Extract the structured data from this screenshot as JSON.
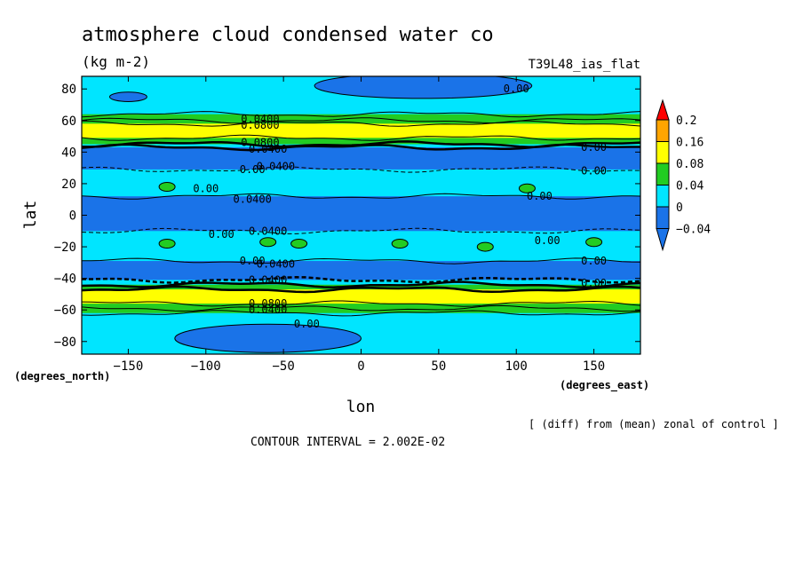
{
  "chart_data": {
    "type": "contour",
    "title": "atmosphere cloud condensed water co",
    "units": "(kg m-2)",
    "dataset": "T39L48_ias_flat",
    "xlabel": "lon",
    "ylabel": "lat",
    "x_units_label": "(degrees_east)",
    "y_units_label": "(degrees_north)",
    "xlim": [
      -180,
      180
    ],
    "ylim": [
      -90,
      90
    ],
    "x_ticks": [
      -150,
      -100,
      -50,
      0,
      50,
      100,
      150
    ],
    "y_ticks": [
      80,
      60,
      40,
      20,
      0,
      -20,
      -40,
      -60,
      -80
    ],
    "subtitle_note": "[ (diff) from (mean) zonal of control ]",
    "contour_interval_text": "CONTOUR INTERVAL = 2.002E-02",
    "colorbar": {
      "levels": [
        -0.04,
        0,
        0.04,
        0.08,
        0.16,
        0.2
      ],
      "labels": [
        "0.2",
        "0.16",
        "0.08",
        "0.04",
        "0",
        "-0.04"
      ],
      "colors": {
        "below": "#1a73e8",
        "-0.04_0": "#1a73e8",
        "0_0.04": "#00e5ff",
        "0.04_0.08": "#22cc22",
        "0.08_0.16": "#ffff00",
        "0.16_0.2": "#ffa500",
        "above": "#ff0000"
      }
    },
    "contour_labels": [
      {
        "text": "0.00",
        "lon": 100,
        "lat": 80
      },
      {
        "text": "0.0400",
        "lon": -65,
        "lat": 61
      },
      {
        "text": "0.0800",
        "lon": -65,
        "lat": 57
      },
      {
        "text": "0.0800",
        "lon": -65,
        "lat": 46
      },
      {
        "text": "0.0400",
        "lon": -60,
        "lat": 42
      },
      {
        "text": "0.00",
        "lon": 150,
        "lat": 43
      },
      {
        "text": "0.00",
        "lon": -70,
        "lat": 29
      },
      {
        "text": "0.0400",
        "lon": -55,
        "lat": 31
      },
      {
        "text": "0.00",
        "lon": 150,
        "lat": 28
      },
      {
        "text": "0.00",
        "lon": -100,
        "lat": 17
      },
      {
        "text": "0.0400",
        "lon": -70,
        "lat": 10
      },
      {
        "text": "0.00",
        "lon": 115,
        "lat": 12
      },
      {
        "text": "0.00",
        "lon": -90,
        "lat": -12
      },
      {
        "text": "0.0400",
        "lon": -60,
        "lat": -10
      },
      {
        "text": "0.00",
        "lon": 120,
        "lat": -16
      },
      {
        "text": "0.00",
        "lon": -70,
        "lat": -29
      },
      {
        "text": "0.0400",
        "lon": -55,
        "lat": -31
      },
      {
        "text": "0.00",
        "lon": 150,
        "lat": -29
      },
      {
        "text": "0.0400",
        "lon": -60,
        "lat": -41
      },
      {
        "text": "0.00",
        "lon": 150,
        "lat": -43
      },
      {
        "text": "0.0800",
        "lon": -60,
        "lat": -56
      },
      {
        "text": "0.0400",
        "lon": -60,
        "lat": -60
      },
      {
        "text": "0.00",
        "lon": -35,
        "lat": -69
      }
    ],
    "zonal_bands": [
      {
        "lat_from": 90,
        "lat_to": 64,
        "value": 0.01
      },
      {
        "lat_from": 64,
        "lat_to": 60,
        "value": 0.05
      },
      {
        "lat_from": 60,
        "lat_to": 58,
        "value": 0.06
      },
      {
        "lat_from": 58,
        "lat_to": 49,
        "value": 0.1
      },
      {
        "lat_from": 49,
        "lat_to": 45,
        "value": 0.06
      },
      {
        "lat_from": 45,
        "lat_to": 43,
        "value": 0.02
      },
      {
        "lat_from": 43,
        "lat_to": 29,
        "value": -0.02
      },
      {
        "lat_from": 29,
        "lat_to": 12,
        "value": 0.01
      },
      {
        "lat_from": 12,
        "lat_to": -10,
        "value": -0.02
      },
      {
        "lat_from": -10,
        "lat_to": -29,
        "value": 0.01
      },
      {
        "lat_from": -29,
        "lat_to": -41,
        "value": -0.02
      },
      {
        "lat_from": -41,
        "lat_to": -44,
        "value": 0.02
      },
      {
        "lat_from": -44,
        "lat_to": -47,
        "value": 0.06
      },
      {
        "lat_from": -47,
        "lat_to": -56,
        "value": 0.1
      },
      {
        "lat_from": -56,
        "lat_to": -59,
        "value": 0.06
      },
      {
        "lat_from": -59,
        "lat_to": -62,
        "value": 0.05
      },
      {
        "lat_from": -62,
        "lat_to": -90,
        "value": 0.01
      }
    ],
    "negative_patches": [
      {
        "lon_center": 40,
        "lat_center": 82,
        "lon_half": 70,
        "lat_half": 8
      },
      {
        "lon_center": -150,
        "lat_center": 75,
        "lon_half": 12,
        "lat_half": 3
      },
      {
        "lon_center": -60,
        "lat_center": -78,
        "lon_half": 60,
        "lat_half": 9
      }
    ],
    "green_patches": [
      {
        "lon": -125,
        "lat": 18
      },
      {
        "lon": 107,
        "lat": 17
      },
      {
        "lon": -125,
        "lat": -18
      },
      {
        "lon": -60,
        "lat": -17
      },
      {
        "lon": -40,
        "lat": -18
      },
      {
        "lon": 25,
        "lat": -18
      },
      {
        "lon": 80,
        "lat": -20
      },
      {
        "lon": 150,
        "lat": -17
      }
    ]
  }
}
